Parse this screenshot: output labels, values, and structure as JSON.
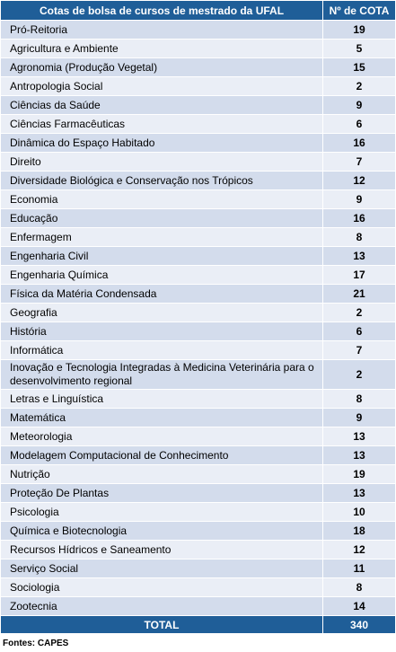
{
  "table": {
    "header": {
      "course": "Cotas de bolsa de cursos de mestrado da UFAL",
      "count": "Nº de COTA"
    },
    "rows": [
      {
        "course": "Pró-Reitoria",
        "count": "19"
      },
      {
        "course": "Agricultura e Ambiente",
        "count": "5"
      },
      {
        "course": "Agronomia (Produção Vegetal)",
        "count": "15"
      },
      {
        "course": "Antropologia Social",
        "count": "2"
      },
      {
        "course": "Ciências da Saúde",
        "count": "9"
      },
      {
        "course": "Ciências Farmacêuticas",
        "count": "6"
      },
      {
        "course": "Dinâmica do Espaço Habitado",
        "count": "16"
      },
      {
        "course": "Direito",
        "count": "7"
      },
      {
        "course": "Diversidade Biológica e Conservação nos Trópicos",
        "count": "12"
      },
      {
        "course": "Economia",
        "count": "9"
      },
      {
        "course": "Educação",
        "count": "16"
      },
      {
        "course": "Enfermagem",
        "count": "8"
      },
      {
        "course": "Engenharia Civil",
        "count": "13"
      },
      {
        "course": "Engenharia Química",
        "count": "17"
      },
      {
        "course": "Física da Matéria Condensada",
        "count": "21"
      },
      {
        "course": "Geografia",
        "count": "2"
      },
      {
        "course": "História",
        "count": "6"
      },
      {
        "course": "Informática",
        "count": "7"
      },
      {
        "course": "Inovação e Tecnologia Integradas à Medicina Veterinária para o desenvolvimento regional",
        "count": "2"
      },
      {
        "course": "Letras e Linguística",
        "count": "8"
      },
      {
        "course": "Matemática",
        "count": "9"
      },
      {
        "course": "Meteorologia",
        "count": "13"
      },
      {
        "course": "Modelagem Computacional de Conhecimento",
        "count": "13"
      },
      {
        "course": "Nutrição",
        "count": "19"
      },
      {
        "course": "Proteção De Plantas",
        "count": "13"
      },
      {
        "course": "Psicologia",
        "count": "10"
      },
      {
        "course": "Química e Biotecnologia",
        "count": "18"
      },
      {
        "course": "Recursos Hídricos e Saneamento",
        "count": "12"
      },
      {
        "course": "Serviço Social",
        "count": "11"
      },
      {
        "course": "Sociologia",
        "count": "8"
      },
      {
        "course": "Zootecnia",
        "count": "14"
      }
    ],
    "total": {
      "label": "TOTAL",
      "count": "340"
    }
  },
  "source": "Fontes: CAPES",
  "colors": {
    "header_bg": "#1f5e98",
    "row_odd_bg": "#d3dcec",
    "row_even_bg": "#eaeef6",
    "header_text": "#ffffff"
  }
}
